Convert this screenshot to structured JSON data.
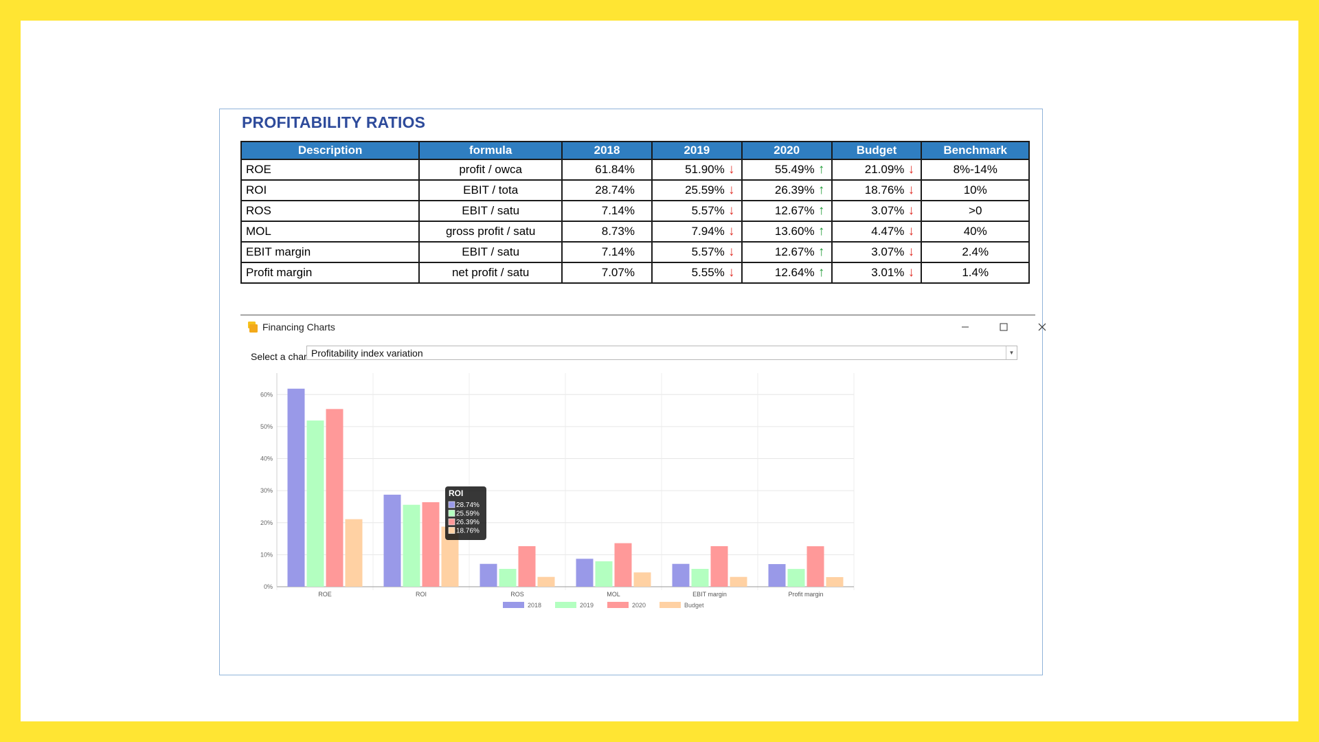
{
  "ratios": {
    "title": "PROFITABILITY RATIOS",
    "headers": [
      "Description",
      "formula",
      "2018",
      "2019",
      "2020",
      "Budget",
      "Benchmark"
    ],
    "rows": [
      {
        "desc": "ROE",
        "formula": "profit / owca",
        "y2018": "61.84%",
        "y2019": "51.90%",
        "y2019_trend": "down",
        "y2020": "55.49%",
        "y2020_trend": "up",
        "budget": "21.09%",
        "budget_trend": "down",
        "benchmark": "8%-14%"
      },
      {
        "desc": "ROI",
        "formula": "EBIT / tota",
        "y2018": "28.74%",
        "y2019": "25.59%",
        "y2019_trend": "down",
        "y2020": "26.39%",
        "y2020_trend": "up",
        "budget": "18.76%",
        "budget_trend": "down",
        "benchmark": "10%"
      },
      {
        "desc": "ROS",
        "formula": "EBIT / satu",
        "y2018": "7.14%",
        "y2019": "5.57%",
        "y2019_trend": "down",
        "y2020": "12.67%",
        "y2020_trend": "up",
        "budget": "3.07%",
        "budget_trend": "down",
        "benchmark": ">0"
      },
      {
        "desc": "MOL",
        "formula": "gross profit / satu",
        "y2018": "8.73%",
        "y2019": "7.94%",
        "y2019_trend": "down",
        "y2020": "13.60%",
        "y2020_trend": "up",
        "budget": "4.47%",
        "budget_trend": "down",
        "benchmark": "40%"
      },
      {
        "desc": "EBIT margin",
        "formula": "EBIT / satu",
        "y2018": "7.14%",
        "y2019": "5.57%",
        "y2019_trend": "down",
        "y2020": "12.67%",
        "y2020_trend": "up",
        "budget": "3.07%",
        "budget_trend": "down",
        "benchmark": "2.4%"
      },
      {
        "desc": "Profit margin",
        "formula": "net profit / satu",
        "y2018": "7.07%",
        "y2019": "5.55%",
        "y2019_trend": "down",
        "y2020": "12.64%",
        "y2020_trend": "up",
        "budget": "3.01%",
        "budget_trend": "down",
        "benchmark": "1.4%"
      }
    ]
  },
  "window": {
    "title": "Financing Charts",
    "icon": "folder-icon",
    "select_label": "Select a chart",
    "select_value": "Profitability index variation"
  },
  "chart_data": {
    "type": "bar",
    "categories": [
      "ROE",
      "ROI",
      "ROS",
      "MOL",
      "EBIT margin",
      "Profit margin"
    ],
    "series": [
      {
        "name": "2018",
        "color": "#9999e8",
        "values": [
          61.84,
          28.74,
          7.14,
          8.73,
          7.14,
          7.07
        ]
      },
      {
        "name": "2019",
        "color": "#b3ffc0",
        "values": [
          51.9,
          25.59,
          5.57,
          7.94,
          5.57,
          5.55
        ]
      },
      {
        "name": "2020",
        "color": "#ff9999",
        "values": [
          55.49,
          26.39,
          12.67,
          13.6,
          12.67,
          12.64
        ]
      },
      {
        "name": "Budget",
        "color": "#ffd1a3",
        "values": [
          21.09,
          18.76,
          3.07,
          4.47,
          3.07,
          3.01
        ]
      }
    ],
    "ylim": [
      0,
      65
    ],
    "y_ticks": [
      "0%",
      "10%",
      "20%",
      "30%",
      "40%",
      "50%",
      "60%"
    ],
    "grid": true,
    "legend_position": "bottom",
    "tooltip": {
      "title": "ROI",
      "lines": [
        "28.74%",
        "25.59%",
        "26.39%",
        "18.76%"
      ]
    }
  }
}
